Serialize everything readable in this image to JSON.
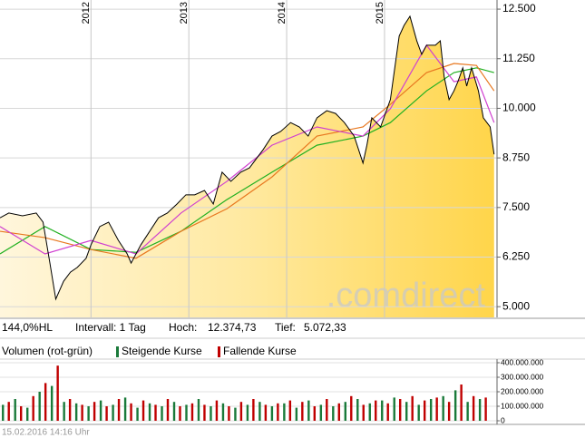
{
  "chart_data": [
    {
      "type": "line",
      "xlim": [
        2011.07,
        2016.15
      ],
      "xticks": [
        2012,
        2013,
        2014,
        2015
      ],
      "ylim": [
        4730,
        12730
      ],
      "yticks": [
        {
          "value": 5000,
          "label": "5.000"
        },
        {
          "value": 6250,
          "label": "6.250"
        },
        {
          "value": 7500,
          "label": "7.500"
        },
        {
          "value": 8750,
          "label": "8.750"
        },
        {
          "value": 10000,
          "label": "10.000"
        },
        {
          "value": 11250,
          "label": "11.250"
        },
        {
          "value": 12500,
          "label": "12.500"
        }
      ],
      "grid": true,
      "area": true,
      "watermark": ".comdirect",
      "annotations": [
        "144,0%HL",
        "Intervall: 1 Tag",
        "Hoch:",
        "12.374,73",
        "Tief:",
        "5.072,33"
      ],
      "series": [
        {
          "color": "#000000",
          "x": [
            2011.07,
            2011.16,
            2011.3,
            2011.44,
            2011.51,
            2011.58,
            2011.64,
            2011.72,
            2011.79,
            2011.86,
            2011.95,
            2012.0,
            2012.09,
            2012.18,
            2012.28,
            2012.37,
            2012.41,
            2012.51,
            2012.6,
            2012.69,
            2012.78,
            2012.88,
            2012.97,
            2013.06,
            2013.16,
            2013.25,
            2013.34,
            2013.43,
            2013.53,
            2013.62,
            2013.76,
            2013.85,
            2013.94,
            2014.04,
            2014.13,
            2014.22,
            2014.31,
            2014.41,
            2014.5,
            2014.59,
            2014.69,
            2014.78,
            2014.82,
            2014.87,
            2014.96,
            2015.06,
            2015.15,
            2015.2,
            2015.26,
            2015.33,
            2015.38,
            2015.43,
            2015.52,
            2015.57,
            2015.61,
            2015.66,
            2015.71,
            2015.75,
            2015.8,
            2015.84,
            2015.89,
            2015.96,
            2016.01,
            2016.08,
            2016.12
          ],
          "values": [
            7240,
            7360,
            7290,
            7360,
            7130,
            6100,
            5190,
            5640,
            5870,
            5990,
            6220,
            6560,
            7020,
            7130,
            6670,
            6330,
            6100,
            6560,
            6900,
            7240,
            7360,
            7590,
            7820,
            7820,
            7930,
            7590,
            8390,
            8160,
            8390,
            8500,
            8960,
            9300,
            9420,
            9640,
            9530,
            9300,
            9760,
            9940,
            9870,
            9640,
            9300,
            8620,
            9070,
            9760,
            9530,
            10220,
            11820,
            12090,
            12320,
            11700,
            11360,
            11590,
            11590,
            11700,
            10790,
            10220,
            10440,
            10670,
            11020,
            10560,
            11020,
            10440,
            9760,
            9530,
            8840
          ]
        },
        {
          "color": "#d040d0",
          "x": [
            2011.07,
            2011.53,
            2012.0,
            2012.46,
            2012.92,
            2013.39,
            2013.85,
            2014.31,
            2014.78,
            2015.06,
            2015.43,
            2015.71,
            2015.94,
            2016.12
          ],
          "values": [
            7020,
            6330,
            6670,
            6330,
            7360,
            8160,
            9070,
            9530,
            9300,
            9990,
            11590,
            10670,
            10790,
            9640
          ]
        },
        {
          "color": "#e87820",
          "x": [
            2011.07,
            2011.53,
            2012.0,
            2012.46,
            2012.92,
            2013.39,
            2013.85,
            2014.31,
            2014.78,
            2015.06,
            2015.43,
            2015.71,
            2015.94,
            2016.12
          ],
          "values": [
            6900,
            6740,
            6440,
            6220,
            6900,
            7470,
            8270,
            9300,
            9530,
            10100,
            10900,
            11130,
            11080,
            10440
          ]
        },
        {
          "color": "#20b020",
          "x": [
            2011.07,
            2011.53,
            2012.0,
            2012.46,
            2012.92,
            2013.39,
            2013.85,
            2014.31,
            2014.78,
            2015.06,
            2015.43,
            2015.71,
            2015.94,
            2016.12
          ],
          "values": [
            6330,
            7020,
            6440,
            6370,
            6900,
            7700,
            8390,
            9070,
            9300,
            9640,
            10440,
            10900,
            11020,
            10900
          ]
        }
      ]
    },
    {
      "type": "bar",
      "title": "Volumen (rot-grün)",
      "xlim": [
        2011.07,
        2016.15
      ],
      "ylim": [
        0,
        400000000
      ],
      "yticks": [
        {
          "value": 0,
          "label": "0"
        },
        {
          "value": 100000000,
          "label": "100.000.000"
        },
        {
          "value": 200000000,
          "label": "200.000.000"
        },
        {
          "value": 300000000,
          "label": "300.000.000"
        },
        {
          "value": 400000000,
          "label": "400.000.000"
        }
      ],
      "series": [
        {
          "name": "Steigende Kurse",
          "color": "#1a7a3a",
          "x": [
            2011.1,
            2011.225,
            2011.35,
            2011.475,
            2011.6,
            2011.725,
            2011.85,
            2011.975,
            2012.1,
            2012.225,
            2012.35,
            2012.475,
            2012.6,
            2012.725,
            2012.85,
            2012.975,
            2013.1,
            2013.225,
            2013.35,
            2013.475,
            2013.6,
            2013.725,
            2013.85,
            2013.975,
            2014.1,
            2014.225,
            2014.35,
            2014.475,
            2014.6,
            2014.725,
            2014.85,
            2014.975,
            2015.1,
            2015.225,
            2015.35,
            2015.475,
            2015.6,
            2015.725,
            2015.85,
            2015.975
          ],
          "values": [
            110000000,
            150000000,
            90000000,
            200000000,
            240000000,
            130000000,
            120000000,
            100000000,
            140000000,
            110000000,
            160000000,
            90000000,
            120000000,
            100000000,
            130000000,
            110000000,
            150000000,
            100000000,
            120000000,
            90000000,
            110000000,
            130000000,
            100000000,
            120000000,
            90000000,
            140000000,
            110000000,
            100000000,
            130000000,
            150000000,
            120000000,
            140000000,
            160000000,
            130000000,
            110000000,
            150000000,
            170000000,
            210000000,
            130000000,
            150000000
          ]
        },
        {
          "name": "Fallende Kurse",
          "color": "#c00000",
          "x": [
            2011.16,
            2011.285,
            2011.41,
            2011.535,
            2011.66,
            2011.785,
            2011.91,
            2012.035,
            2012.16,
            2012.285,
            2012.41,
            2012.535,
            2012.66,
            2012.785,
            2012.91,
            2013.035,
            2013.16,
            2013.285,
            2013.41,
            2013.535,
            2013.66,
            2013.785,
            2013.91,
            2014.035,
            2014.16,
            2014.285,
            2014.41,
            2014.535,
            2014.66,
            2014.785,
            2014.91,
            2015.035,
            2015.16,
            2015.285,
            2015.41,
            2015.535,
            2015.66,
            2015.785,
            2015.91,
            2016.035
          ],
          "values": [
            130000000,
            100000000,
            170000000,
            260000000,
            380000000,
            150000000,
            110000000,
            130000000,
            100000000,
            150000000,
            120000000,
            140000000,
            110000000,
            150000000,
            100000000,
            120000000,
            110000000,
            140000000,
            100000000,
            130000000,
            150000000,
            110000000,
            120000000,
            140000000,
            130000000,
            100000000,
            150000000,
            120000000,
            170000000,
            110000000,
            140000000,
            120000000,
            150000000,
            170000000,
            140000000,
            160000000,
            130000000,
            250000000,
            170000000,
            160000000
          ]
        }
      ]
    }
  ],
  "footer": "15.02.2016 14:16 Uhr"
}
